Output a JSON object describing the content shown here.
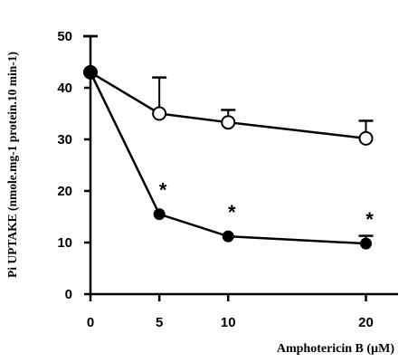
{
  "chart_data": {
    "type": "line",
    "xlabel": "Amphotericin B (µM)",
    "ylabel": "Pi UPTAKE (nmole.mg-1 protein.10 min-1)",
    "xlim": [
      0,
      23
    ],
    "ylim": [
      0,
      50
    ],
    "x_ticks": [
      0,
      5,
      10,
      20
    ],
    "y_ticks": [
      0,
      10,
      20,
      30,
      40,
      50
    ],
    "series": [
      {
        "marker": "open-circle",
        "x": [
          0,
          5,
          10,
          20
        ],
        "values": [
          43,
          35,
          33.3,
          30.2
        ],
        "error_up": [
          7,
          7,
          2.4,
          3.4
        ]
      },
      {
        "marker": "filled-circle",
        "x": [
          0,
          5,
          10,
          20
        ],
        "values": [
          43,
          15.5,
          11.2,
          9.8
        ],
        "error_up": [
          7,
          0,
          0,
          1.5
        ],
        "annotations": [
          "",
          "*",
          "*",
          "*"
        ]
      }
    ]
  }
}
